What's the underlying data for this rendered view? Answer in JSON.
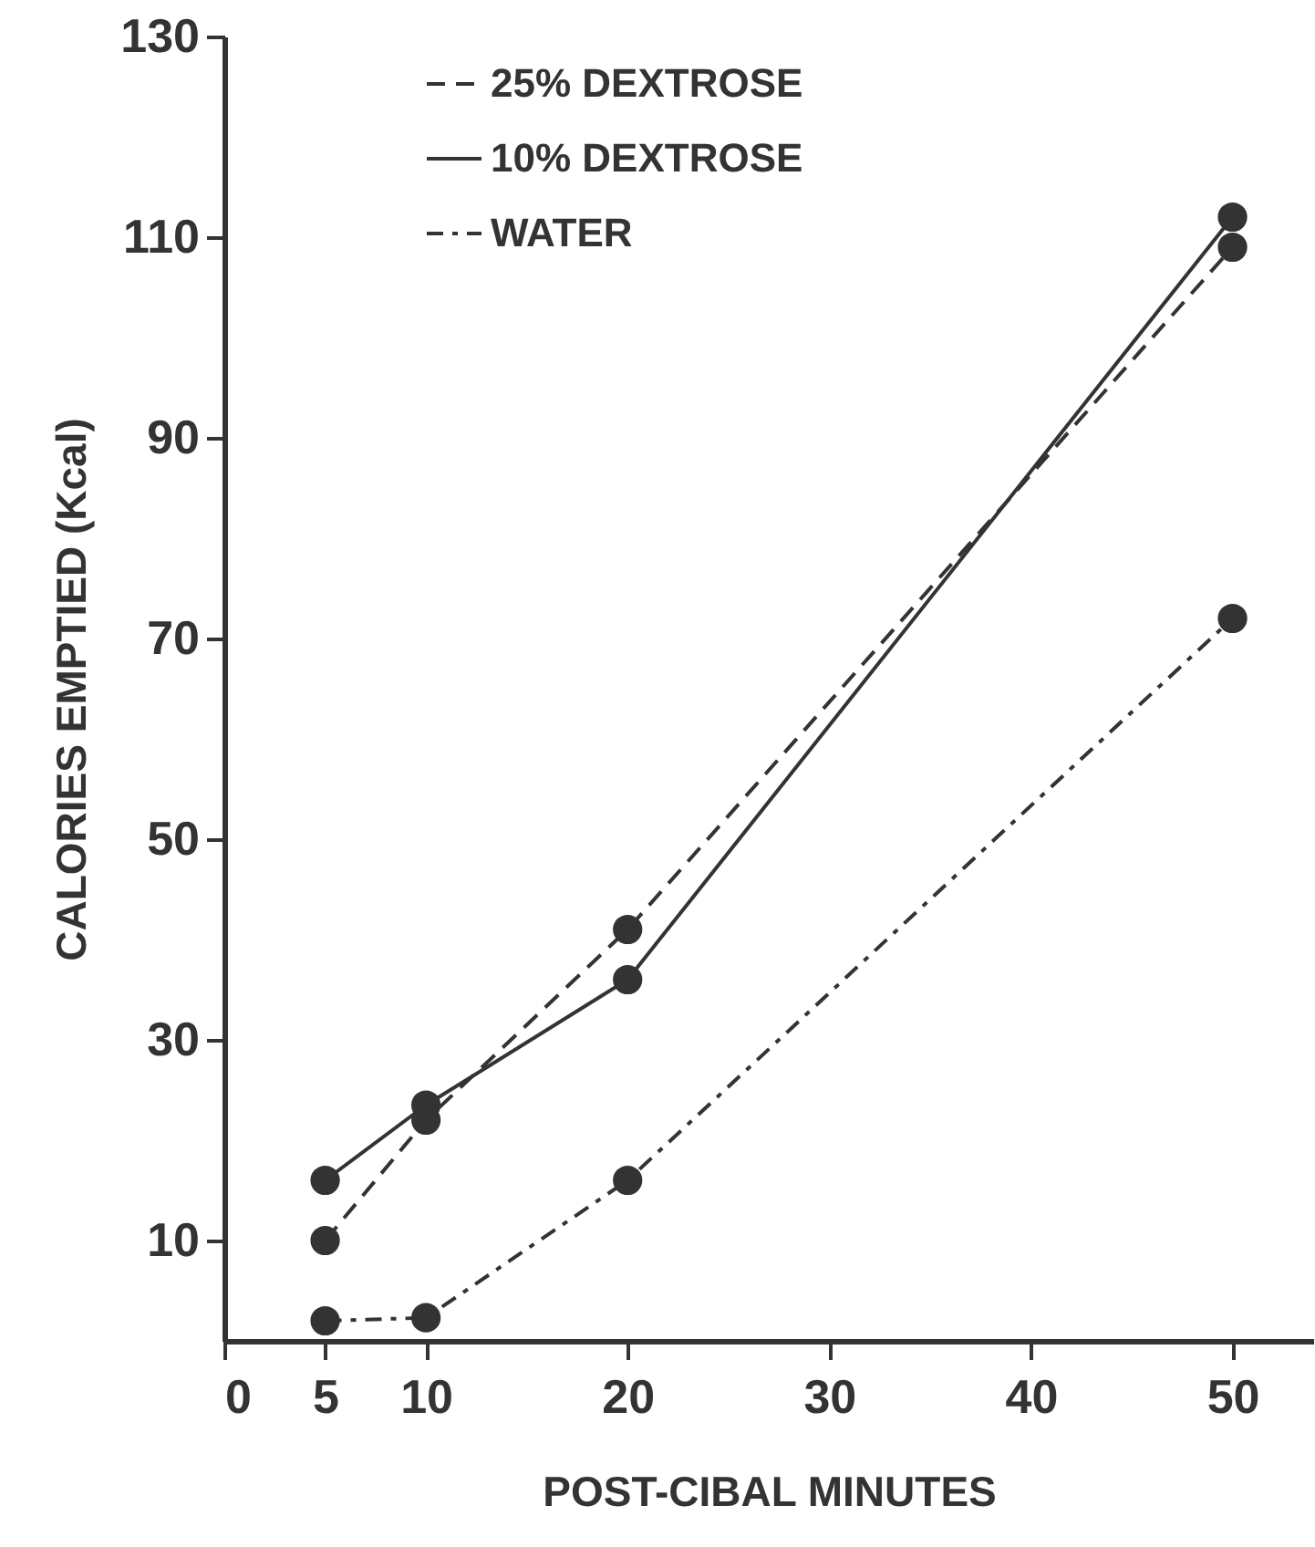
{
  "chart_data": {
    "type": "line",
    "xlabel": "POST-CIBAL MINUTES",
    "ylabel": "CALORIES EMPTIED (Kcal)",
    "x": [
      5,
      10,
      20,
      50
    ],
    "series": [
      {
        "name": "25% DEXTROSE",
        "color": "#333333",
        "line_style": "dashed",
        "values": [
          10,
          22,
          41,
          109
        ]
      },
      {
        "name": "10% DEXTROSE",
        "color": "#333333",
        "line_style": "solid",
        "values": [
          16,
          23.5,
          36,
          112
        ]
      },
      {
        "name": "WATER",
        "color": "#333333",
        "line_style": "dotted",
        "values": [
          2,
          2.3,
          16,
          72
        ]
      }
    ],
    "xlim": [
      0,
      54
    ],
    "xticks": [
      0,
      5,
      10,
      20,
      30,
      40,
      50
    ],
    "ylim": [
      0,
      130
    ],
    "yticks": [
      10,
      30,
      50,
      70,
      90,
      110,
      130
    ],
    "marker": "circle",
    "legend": "top",
    "grid": false
  }
}
